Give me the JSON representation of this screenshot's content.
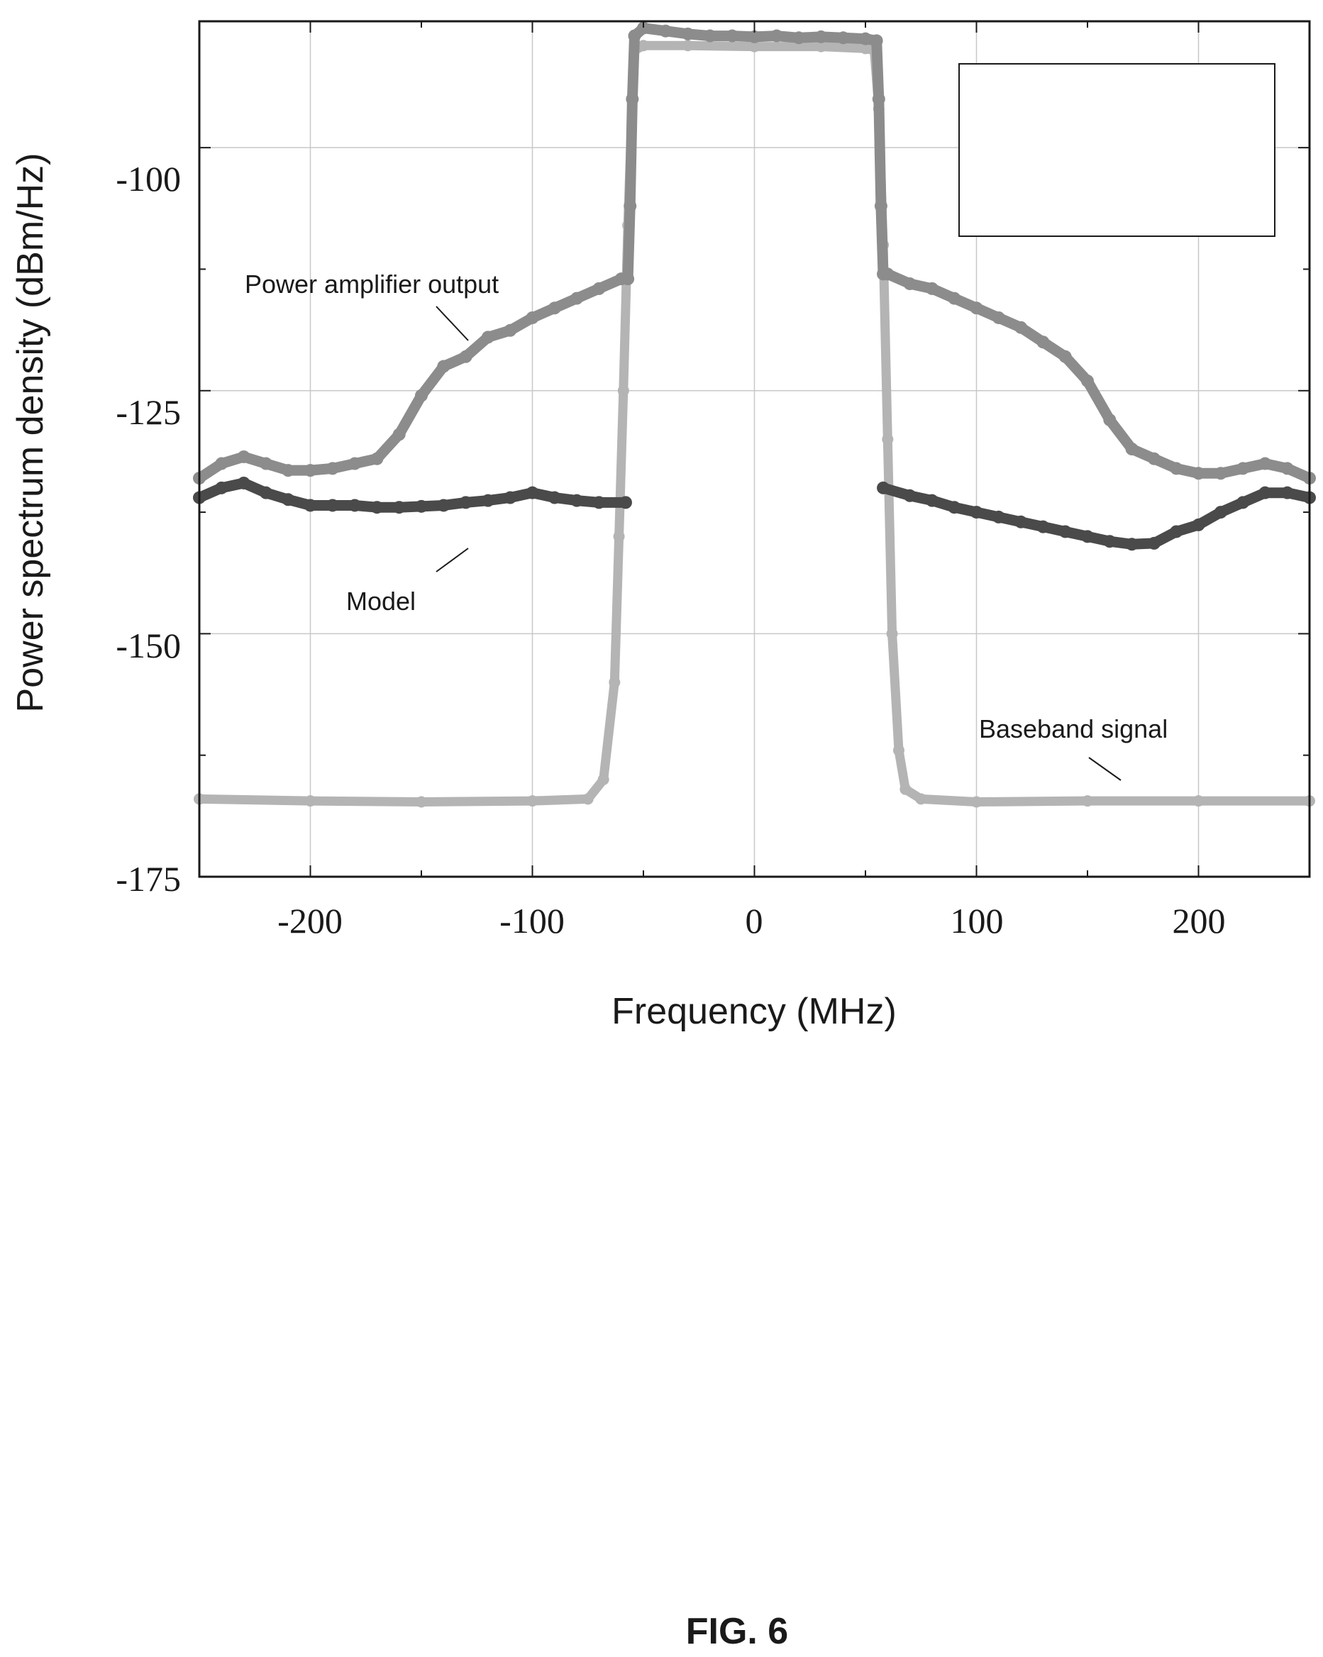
{
  "figure_label": "FIG. 6",
  "chart_data": {
    "type": "line",
    "title": "",
    "xlabel": "Frequency (MHz)",
    "ylabel": "Power spectrum density (dBm/Hz)",
    "xlim": [
      -250,
      250
    ],
    "ylim": [
      -175,
      -87
    ],
    "xticks": [
      -200,
      -100,
      0,
      100,
      200
    ],
    "yticks": [
      -100,
      -125,
      -150,
      -175
    ],
    "xtick_labels": [
      "-200",
      "-100",
      "0",
      "100",
      "200"
    ],
    "ytick_labels": [
      "-100",
      "-125",
      "-150",
      "-175"
    ],
    "grid": true,
    "legend": "empty box, top-right",
    "colors": {
      "pa_output": "#8c8c8c",
      "model": "#4a4a4a",
      "baseband": "#b4b4b4",
      "grid": "#c8c8c8",
      "axis": "#1a1a1a"
    },
    "annotations": [
      {
        "text": "Power amplifier  output",
        "series": "pa_output"
      },
      {
        "text": "Model",
        "series": "model"
      },
      {
        "text": "Baseband signal",
        "series": "baseband"
      }
    ],
    "series": [
      {
        "key": "pa_output",
        "points": [
          [
            -250,
            -134
          ],
          [
            -240,
            -132.5
          ],
          [
            -230,
            -131.8
          ],
          [
            -220,
            -132.5
          ],
          [
            -210,
            -133.2
          ],
          [
            -200,
            -133.2
          ],
          [
            -190,
            -133
          ],
          [
            -180,
            -132.5
          ],
          [
            -170,
            -132
          ],
          [
            -160,
            -129.5
          ],
          [
            -150,
            -125.5
          ],
          [
            -140,
            -122.5
          ],
          [
            -130,
            -121.5
          ],
          [
            -120,
            -119.5
          ],
          [
            -110,
            -118.8
          ],
          [
            -100,
            -117.5
          ],
          [
            -90,
            -116.5
          ],
          [
            -80,
            -115.5
          ],
          [
            -70,
            -114.5
          ],
          [
            -60,
            -113.5
          ],
          [
            -57,
            -113.5
          ],
          [
            -56,
            -106
          ],
          [
            -55,
            -95
          ],
          [
            -54,
            -88.5
          ],
          [
            -50,
            -87.7
          ],
          [
            -40,
            -88
          ],
          [
            -30,
            -88.3
          ],
          [
            -20,
            -88.5
          ],
          [
            -10,
            -88.5
          ],
          [
            0,
            -88.6
          ],
          [
            10,
            -88.5
          ],
          [
            20,
            -88.7
          ],
          [
            30,
            -88.6
          ],
          [
            40,
            -88.7
          ],
          [
            50,
            -88.8
          ],
          [
            55,
            -89
          ],
          [
            56,
            -95
          ],
          [
            57,
            -106
          ],
          [
            58,
            -113
          ],
          [
            60,
            -113
          ],
          [
            70,
            -114
          ],
          [
            80,
            -114.5
          ],
          [
            90,
            -115.5
          ],
          [
            100,
            -116.5
          ],
          [
            110,
            -117.5
          ],
          [
            120,
            -118.5
          ],
          [
            130,
            -120
          ],
          [
            140,
            -121.5
          ],
          [
            150,
            -124
          ],
          [
            160,
            -128
          ],
          [
            170,
            -131
          ],
          [
            180,
            -132
          ],
          [
            190,
            -133
          ],
          [
            200,
            -133.5
          ],
          [
            210,
            -133.5
          ],
          [
            220,
            -133
          ],
          [
            230,
            -132.5
          ],
          [
            240,
            -133
          ],
          [
            250,
            -134
          ]
        ]
      },
      {
        "key": "model",
        "points": [
          [
            -250,
            -136
          ],
          [
            -240,
            -135
          ],
          [
            -230,
            -134.5
          ],
          [
            -220,
            -135.5
          ],
          [
            -210,
            -136.2
          ],
          [
            -200,
            -136.8
          ],
          [
            -190,
            -136.8
          ],
          [
            -180,
            -136.8
          ],
          [
            -170,
            -137
          ],
          [
            -160,
            -137
          ],
          [
            -150,
            -136.9
          ],
          [
            -140,
            -136.8
          ],
          [
            -130,
            -136.5
          ],
          [
            -120,
            -136.3
          ],
          [
            -110,
            -136
          ],
          [
            -100,
            -135.5
          ],
          [
            -90,
            -136
          ],
          [
            -80,
            -136.3
          ],
          [
            -70,
            -136.5
          ],
          [
            -58,
            -136.5
          ],
          [
            58,
            -135
          ],
          [
            70,
            -135.8
          ],
          [
            80,
            -136.3
          ],
          [
            90,
            -137
          ],
          [
            100,
            -137.5
          ],
          [
            110,
            -138
          ],
          [
            120,
            -138.5
          ],
          [
            130,
            -139
          ],
          [
            140,
            -139.5
          ],
          [
            150,
            -140
          ],
          [
            160,
            -140.5
          ],
          [
            170,
            -140.8
          ],
          [
            180,
            -140.7
          ],
          [
            190,
            -139.5
          ],
          [
            200,
            -138.8
          ],
          [
            210,
            -137.5
          ],
          [
            220,
            -136.5
          ],
          [
            230,
            -135.5
          ],
          [
            240,
            -135.5
          ],
          [
            250,
            -136
          ]
        ]
      },
      {
        "key": "baseband",
        "points": [
          [
            -250,
            -167
          ],
          [
            -200,
            -167.2
          ],
          [
            -150,
            -167.3
          ],
          [
            -100,
            -167.2
          ],
          [
            -75,
            -167
          ],
          [
            -68,
            -165
          ],
          [
            -63,
            -155
          ],
          [
            -61,
            -140
          ],
          [
            -59,
            -125
          ],
          [
            -57,
            -108
          ],
          [
            -55,
            -95
          ],
          [
            -54,
            -90
          ],
          [
            -50,
            -89.5
          ],
          [
            -30,
            -89.5
          ],
          [
            0,
            -89.6
          ],
          [
            30,
            -89.6
          ],
          [
            50,
            -89.8
          ],
          [
            54,
            -90
          ],
          [
            56,
            -96
          ],
          [
            58,
            -110
          ],
          [
            60,
            -130
          ],
          [
            62,
            -150
          ],
          [
            65,
            -162
          ],
          [
            68,
            -166
          ],
          [
            75,
            -167
          ],
          [
            100,
            -167.3
          ],
          [
            150,
            -167.2
          ],
          [
            200,
            -167.2
          ],
          [
            250,
            -167.2
          ]
        ]
      }
    ]
  }
}
